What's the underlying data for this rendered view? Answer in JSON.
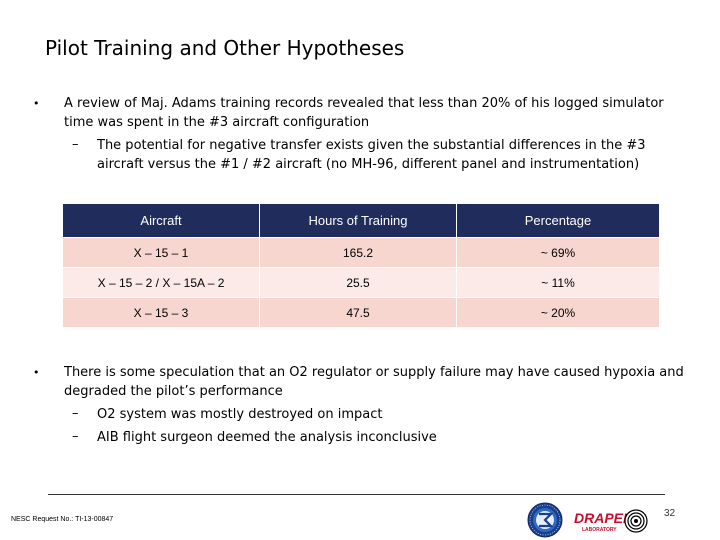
{
  "slide": {
    "title": "Pilot Training and Other Hypotheses",
    "bullet1": {
      "line1": "A review of Maj. Adams training records revealed that less than 20% of his logged simulator",
      "line2": "time was spent in the #3 aircraft configuration",
      "sub1_line1": "The potential for negative transfer exists given the substantial differences in the #3",
      "sub1_line2": "aircraft versus the #1 / #2 aircraft (no MH-96, different panel and instrumentation)"
    },
    "table": {
      "headers": [
        "Aircraft",
        "Hours of Training",
        "Percentage"
      ],
      "rows": [
        [
          "X – 15 – 1",
          "165.2",
          "~ 69%"
        ],
        [
          "X – 15 – 2 / X – 15A – 2",
          "25.5",
          "~ 11%"
        ],
        [
          "X – 15 – 3",
          "47.5",
          "~ 20%"
        ]
      ]
    },
    "bullet2": {
      "line1": "There is some speculation that an O2 regulator or supply failure may have caused hypoxia and",
      "line2": "degraded the pilot’s performance",
      "sub1": "O2 system was mostly destroyed on impact",
      "sub2": "AIB flight surgeon deemed the analysis inconclusive"
    },
    "bullet_glyph": "•",
    "dash_glyph": "–"
  },
  "footer": {
    "request_no": "NESC Request No.: TI-13-00847",
    "page_number": "32",
    "draper_logo_text": "DRAPER",
    "draper_logo_sub": "LABORATORY"
  },
  "colors": {
    "table_header": "#1f2c5c",
    "row_dark": "#f8d6d0",
    "row_light": "#fbeae7",
    "draper_red": "#c8102e"
  }
}
